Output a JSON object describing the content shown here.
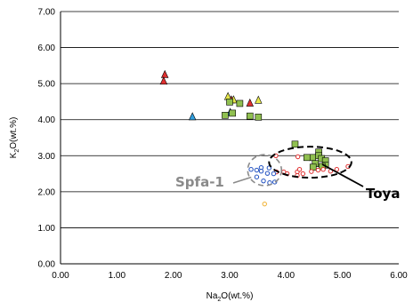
{
  "chart_data": {
    "type": "scatter",
    "title": "",
    "xlabel_parts": {
      "base": "Na",
      "sub": "2",
      "rest": "O(wt.%)"
    },
    "ylabel_parts": {
      "base": "K",
      "sub": "2",
      "rest": "O(wt.%)"
    },
    "xlim": [
      0,
      6
    ],
    "ylim": [
      0,
      7
    ],
    "xticks": [
      0,
      1,
      2,
      3,
      4,
      5,
      6
    ],
    "yticks": [
      0,
      1,
      2,
      3,
      4,
      5,
      6,
      7
    ],
    "xtick_labels": [
      "0.00",
      "1.00",
      "2.00",
      "3.00",
      "4.00",
      "5.00",
      "6.00"
    ],
    "ytick_labels": [
      "0.00",
      "1.00",
      "2.00",
      "3.00",
      "4.00",
      "5.00",
      "6.00",
      "7.00"
    ],
    "grid": "horizontal",
    "series": [
      {
        "marker": "triangle",
        "color": "#e03030",
        "points": [
          [
            1.85,
            5.25
          ],
          [
            1.83,
            5.07
          ],
          [
            3.03,
            4.55
          ],
          [
            3.36,
            4.46
          ]
        ]
      },
      {
        "marker": "triangle",
        "color": "#e6e64a",
        "points": [
          [
            2.97,
            4.64
          ],
          [
            3.07,
            4.55
          ],
          [
            3.51,
            4.54
          ]
        ]
      },
      {
        "marker": "triangle",
        "color": "#30a0e0",
        "points": [
          [
            2.34,
            4.08
          ],
          [
            3.01,
            4.2
          ]
        ]
      },
      {
        "marker": "square",
        "color": "#90c050",
        "points": [
          [
            3.0,
            4.49
          ],
          [
            3.18,
            4.45
          ],
          [
            2.92,
            4.12
          ],
          [
            3.05,
            4.18
          ],
          [
            3.36,
            4.1
          ],
          [
            3.51,
            4.07
          ],
          [
            4.16,
            3.32
          ],
          [
            4.58,
            3.1
          ],
          [
            4.58,
            3.0
          ],
          [
            4.47,
            2.95
          ],
          [
            4.37,
            2.95
          ],
          [
            4.63,
            2.92
          ],
          [
            4.7,
            2.86
          ],
          [
            4.52,
            2.78
          ],
          [
            4.7,
            2.74
          ],
          [
            4.64,
            2.7
          ],
          [
            4.48,
            2.68
          ]
        ]
      },
      {
        "marker": "circle",
        "color": "#e03030",
        "points": [
          [
            3.82,
            3.0
          ],
          [
            3.83,
            2.55
          ],
          [
            3.96,
            2.55
          ],
          [
            4.02,
            2.5
          ],
          [
            4.2,
            2.55
          ],
          [
            4.2,
            2.45
          ],
          [
            4.24,
            2.62
          ],
          [
            4.3,
            2.5
          ],
          [
            4.45,
            2.56
          ],
          [
            4.57,
            2.6
          ],
          [
            4.66,
            2.62
          ],
          [
            4.79,
            2.57
          ],
          [
            4.9,
            2.62
          ],
          [
            5.1,
            2.7
          ],
          [
            4.21,
            2.97
          ]
        ]
      },
      {
        "marker": "circle",
        "color": "#2050c0",
        "points": [
          [
            3.38,
            2.62
          ],
          [
            3.48,
            2.6
          ],
          [
            3.56,
            2.67
          ],
          [
            3.56,
            2.57
          ],
          [
            3.7,
            2.66
          ],
          [
            3.67,
            2.51
          ],
          [
            3.48,
            2.41
          ],
          [
            3.6,
            2.3
          ],
          [
            3.71,
            2.25
          ],
          [
            3.8,
            2.27
          ],
          [
            3.78,
            2.5
          ]
        ]
      },
      {
        "marker": "circle",
        "color": "#f0b030",
        "points": [
          [
            3.62,
            1.66
          ]
        ]
      }
    ],
    "annotations": [
      {
        "text": "Spfa-1",
        "kind": "spfa",
        "ellipse": {
          "cx": 3.62,
          "cy": 2.6,
          "rx": 0.3,
          "ry": 0.43
        }
      },
      {
        "text": "Toya",
        "kind": "toya",
        "ellipse": {
          "cx": 4.43,
          "cy": 2.82,
          "rx": 0.73,
          "ry": 0.43
        }
      }
    ]
  }
}
